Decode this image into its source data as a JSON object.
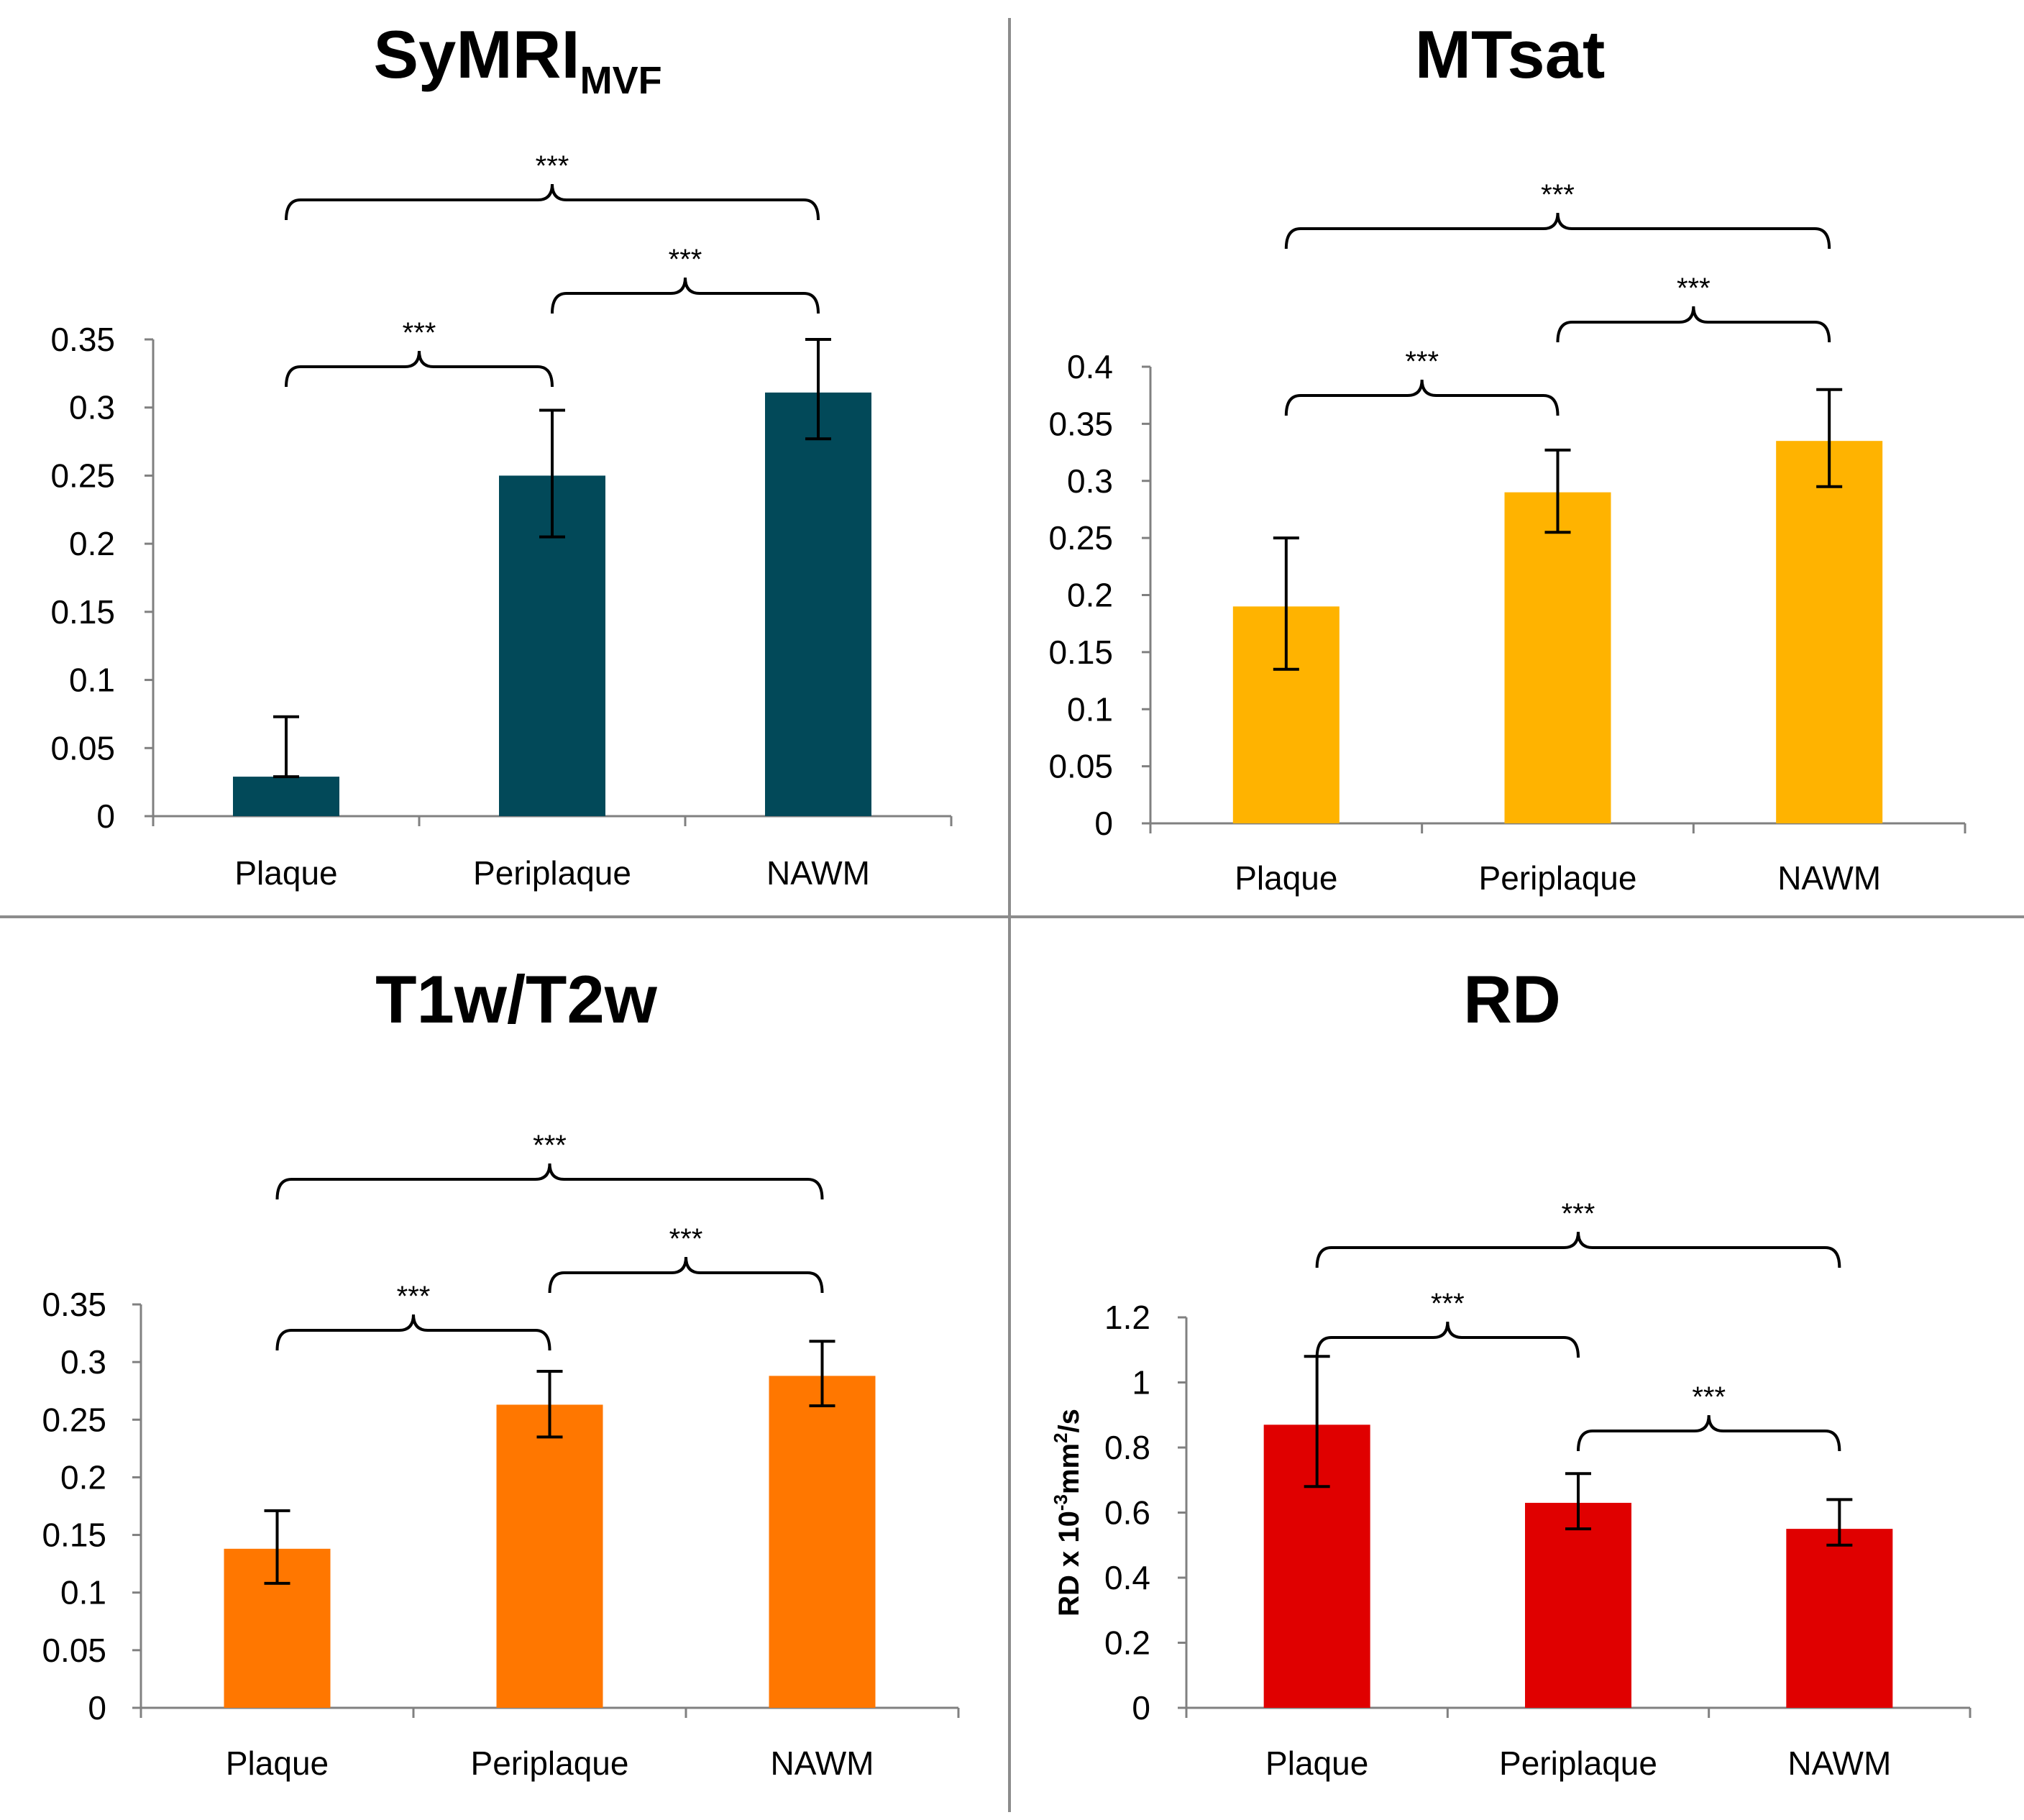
{
  "chart_data": [
    {
      "type": "bar",
      "title": "SyMRI",
      "title_subscript": "MVF",
      "color": "#024959",
      "categories": [
        "Plaque",
        "Periplaque",
        "NAWM"
      ],
      "values": [
        0.029,
        0.25,
        0.311
      ],
      "err_lower": [
        0.029,
        0.205,
        0.277
      ],
      "err_upper": [
        0.073,
        0.298,
        0.35
      ],
      "ylim": [
        0,
        0.35
      ],
      "yticks": [
        0,
        0.05,
        0.1,
        0.15,
        0.2,
        0.25,
        0.3,
        0.35
      ],
      "ytick_labels": [
        "0",
        "0.05",
        "0.1",
        "0.15",
        "0.2",
        "0.25",
        "0.3",
        "0.35"
      ],
      "ylabel": "",
      "ylabel_sup": "",
      "ylabel_tail": "",
      "significance": [
        {
          "from": 0,
          "to": 1,
          "label": "***"
        },
        {
          "from": 1,
          "to": 2,
          "label": "***"
        },
        {
          "from": 0,
          "to": 2,
          "label": "***"
        }
      ]
    },
    {
      "type": "bar",
      "title": "MTsat",
      "title_subscript": "",
      "color": "#FFB300",
      "categories": [
        "Plaque",
        "Periplaque",
        "NAWM"
      ],
      "values": [
        0.19,
        0.29,
        0.335
      ],
      "err_lower": [
        0.135,
        0.255,
        0.295
      ],
      "err_upper": [
        0.25,
        0.327,
        0.38
      ],
      "ylim": [
        0,
        0.4
      ],
      "yticks": [
        0,
        0.05,
        0.1,
        0.15,
        0.2,
        0.25,
        0.3,
        0.35,
        0.4
      ],
      "ytick_labels": [
        "0",
        "0.05",
        "0.1",
        "0.15",
        "0.2",
        "0.25",
        "0.3",
        "0.35",
        "0.4"
      ],
      "ylabel": "",
      "ylabel_sup": "",
      "ylabel_tail": "",
      "significance": [
        {
          "from": 0,
          "to": 1,
          "label": "***"
        },
        {
          "from": 1,
          "to": 2,
          "label": "***"
        },
        {
          "from": 0,
          "to": 2,
          "label": "***"
        }
      ]
    },
    {
      "type": "bar",
      "title": "T1w/T2w",
      "title_subscript": "",
      "color": "#FF7700",
      "categories": [
        "Plaque",
        "Periplaque",
        "NAWM"
      ],
      "values": [
        0.138,
        0.263,
        0.288
      ],
      "err_lower": [
        0.108,
        0.235,
        0.262
      ],
      "err_upper": [
        0.171,
        0.292,
        0.318
      ],
      "ylim": [
        0,
        0.35
      ],
      "yticks": [
        0,
        0.05,
        0.1,
        0.15,
        0.2,
        0.25,
        0.3,
        0.35
      ],
      "ytick_labels": [
        "0",
        "0.05",
        "0.1",
        "0.15",
        "0.2",
        "0.25",
        "0.3",
        "0.35"
      ],
      "ylabel": "",
      "ylabel_sup": "",
      "ylabel_tail": "",
      "significance": [
        {
          "from": 0,
          "to": 1,
          "label": "***"
        },
        {
          "from": 1,
          "to": 2,
          "label": "***"
        },
        {
          "from": 0,
          "to": 2,
          "label": "***"
        }
      ]
    },
    {
      "type": "bar",
      "title": "RD",
      "title_subscript": "",
      "color": "#E00000",
      "categories": [
        "Plaque",
        "Periplaque",
        "NAWM"
      ],
      "values": [
        0.87,
        0.63,
        0.55
      ],
      "err_lower": [
        0.68,
        0.55,
        0.5
      ],
      "err_upper": [
        1.08,
        0.72,
        0.64
      ],
      "ylim": [
        0,
        1.2
      ],
      "yticks": [
        0,
        0.2,
        0.4,
        0.6,
        0.8,
        1,
        1.2
      ],
      "ytick_labels": [
        "0",
        "0.2",
        "0.4",
        "0.6",
        "0.8",
        "1",
        "1.2"
      ],
      "ylabel": "RD x 10",
      "ylabel_sup": "-3",
      "ylabel_tail": "mm",
      "ylabel_sup2": "2",
      "ylabel_tail2": "/s",
      "significance": [
        {
          "from": 0,
          "to": 1,
          "label": "***"
        },
        {
          "from": 1,
          "to": 2,
          "label": "***"
        },
        {
          "from": 0,
          "to": 2,
          "label": "***"
        }
      ]
    }
  ]
}
